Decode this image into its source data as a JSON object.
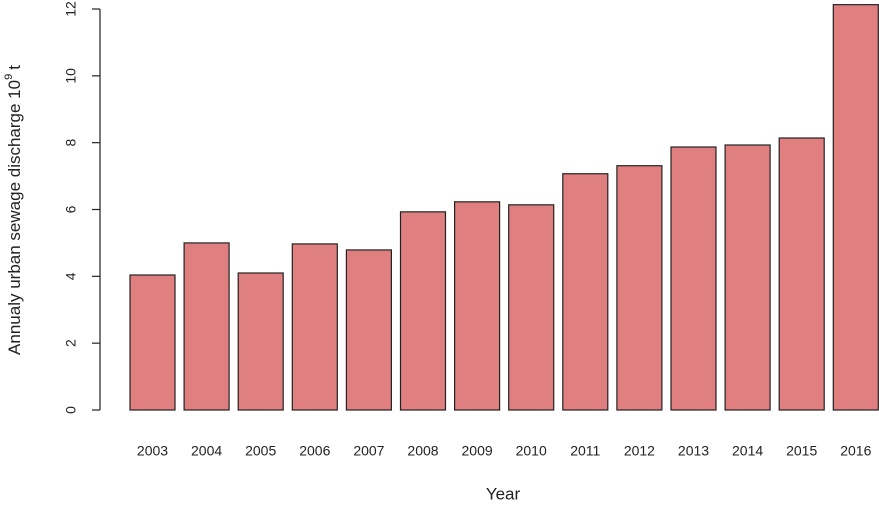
{
  "chart_data": {
    "type": "bar",
    "categories": [
      "2003",
      "2004",
      "2005",
      "2006",
      "2007",
      "2008",
      "2009",
      "2010",
      "2011",
      "2012",
      "2013",
      "2014",
      "2015",
      "2016"
    ],
    "values": [
      4.04,
      5.0,
      4.1,
      4.97,
      4.79,
      5.93,
      6.23,
      6.14,
      7.07,
      7.31,
      7.87,
      7.93,
      8.14,
      12.13
    ],
    "color": "#e07f80",
    "x_label": "Year",
    "y_label": {
      "text": "Annualy urban sewage discharge 10",
      "superscript": "9",
      "unit": "t"
    },
    "ylim": [
      0,
      12
    ],
    "yticks": [
      0,
      2,
      4,
      6,
      8,
      10,
      12
    ]
  }
}
